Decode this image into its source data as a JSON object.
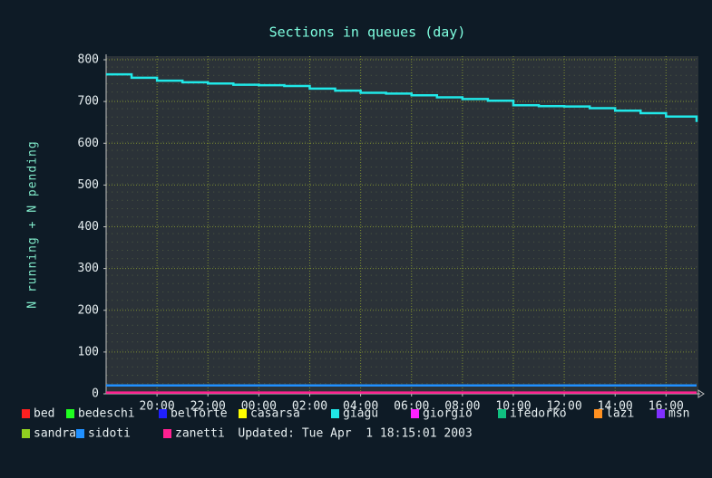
{
  "chart_data": {
    "type": "line",
    "title": "Sections in queues (day)",
    "y_label": "N running + N pending",
    "xlim": [
      18,
      41.2
    ],
    "ylim": [
      0,
      800
    ],
    "xticks": [
      {
        "value": 20,
        "label": "20:00"
      },
      {
        "value": 22,
        "label": "22:00"
      },
      {
        "value": 24,
        "label": "00:00"
      },
      {
        "value": 26,
        "label": "02:00"
      },
      {
        "value": 28,
        "label": "04:00"
      },
      {
        "value": 30,
        "label": "06:00"
      },
      {
        "value": 32,
        "label": "08:00"
      },
      {
        "value": 34,
        "label": "10:00"
      },
      {
        "value": 36,
        "label": "12:00"
      },
      {
        "value": 38,
        "label": "14:00"
      },
      {
        "value": 40,
        "label": "16:00"
      }
    ],
    "yticks": [
      0,
      100,
      200,
      300,
      400,
      500,
      600,
      700,
      800
    ],
    "grid": true,
    "step": true,
    "series": [
      {
        "name": "bed",
        "color": "#ff2020"
      },
      {
        "name": "bedeschi",
        "color": "#20ff20"
      },
      {
        "name": "belforte",
        "color": "#2020ff"
      },
      {
        "name": "casarsa",
        "color": "#ffff00"
      },
      {
        "name": "giagu",
        "color": "#20e8e8",
        "x": [
          18,
          19,
          20,
          21,
          22,
          23,
          24,
          25,
          26,
          27,
          28,
          29,
          30,
          31,
          32,
          33,
          34,
          35,
          36,
          37,
          38,
          39,
          40,
          41.2
        ],
        "values": [
          765,
          757,
          750,
          746,
          743,
          740,
          739,
          737,
          731,
          726,
          721,
          719,
          715,
          710,
          706,
          702,
          691,
          689,
          688,
          684,
          678,
          672,
          664,
          651
        ]
      },
      {
        "name": "giorgio",
        "color": "#ff20ff"
      },
      {
        "name": "ifedorko",
        "color": "#10c080"
      },
      {
        "name": "lazi",
        "color": "#ff9020"
      },
      {
        "name": "msn",
        "color": "#8030ff"
      },
      {
        "name": "sandra",
        "color": "#90d020"
      },
      {
        "name": "sidoti",
        "color": "#2090ff",
        "x": [
          18,
          41.2
        ],
        "values": [
          20,
          20
        ]
      },
      {
        "name": "zanetti",
        "color": "#ff2090",
        "x": [
          18,
          41.2
        ],
        "values": [
          3,
          3
        ]
      }
    ],
    "updated": "Updated: Tue Apr  1 18:15:01 2003"
  }
}
